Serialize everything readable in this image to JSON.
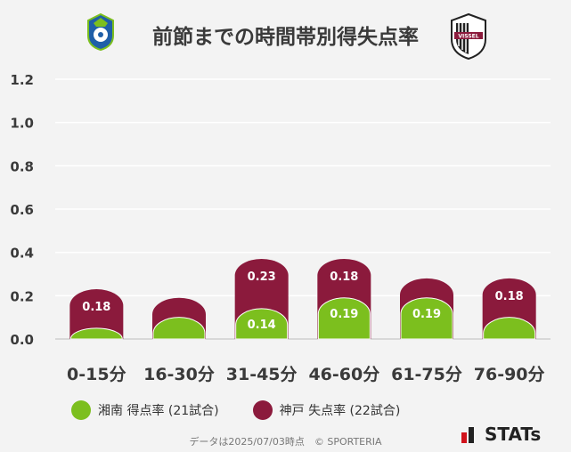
{
  "colors": {
    "shonan": "#7cbf1e",
    "kobe": "#8b1a3c",
    "grid": "#ffffff",
    "axis_text": "#3a3a3a"
  },
  "logos": {
    "left_icon": "shonan-bellmare-emblem",
    "right_icon": "vissel-kobe-emblem",
    "right_text": "VISSEL"
  },
  "chart_data": {
    "type": "bar",
    "title": "前節までの時間帯別得失点率",
    "categories": [
      "0-15分",
      "16-30分",
      "31-45分",
      "46-60分",
      "61-75分",
      "76-90分"
    ],
    "series": [
      {
        "name": "湘南 得点率 (21試合)",
        "values": [
          0.05,
          0.1,
          0.14,
          0.19,
          0.19,
          0.1
        ],
        "labels": [
          "",
          "",
          "0.14",
          "0.19",
          "0.19",
          ""
        ]
      },
      {
        "name": "神戸 失点率 (22試合)",
        "values": [
          0.18,
          0.09,
          0.23,
          0.18,
          0.09,
          0.18
        ],
        "labels": [
          "0.18",
          "",
          "0.23",
          "0.18",
          "",
          "0.18"
        ]
      }
    ],
    "yticks": [
      "0.0",
      "0.2",
      "0.4",
      "0.6",
      "0.8",
      "1.0",
      "1.2"
    ],
    "ylim": [
      0,
      1.2
    ],
    "grid": true,
    "legend_position": "bottom"
  },
  "footer": "データは2025/07/03時点　© SPORTERIA",
  "brand": {
    "icon": "stats-bars-icon",
    "text": "STATs"
  }
}
